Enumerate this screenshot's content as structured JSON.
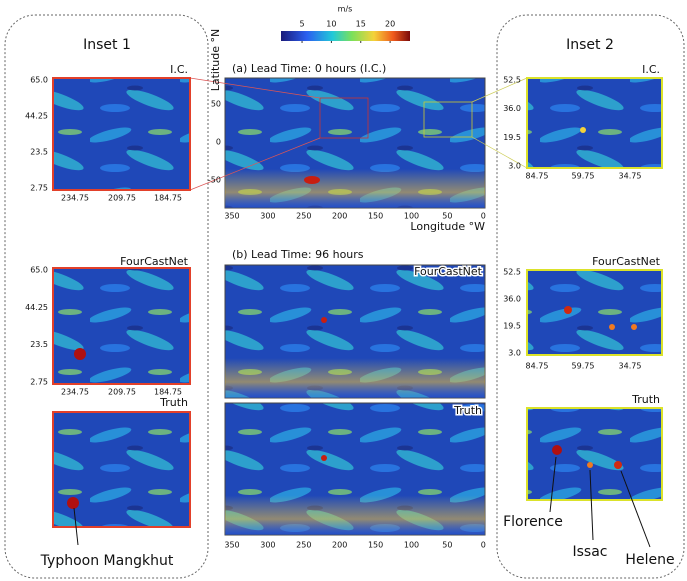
{
  "colorbar": {
    "unit": "m/s",
    "ticks": [
      5,
      10,
      15,
      20
    ]
  },
  "main": {
    "y_axis_label": "Latitude °N",
    "x_axis_label": "Longitude °W",
    "panel_a_title": "(a) Lead Time: 0 hours (I.C.)",
    "panel_b_title": "(b) Lead Time: 96 hours",
    "lat_ticks": [
      "50",
      "0",
      "-50"
    ],
    "lon_ticks": [
      "350",
      "300",
      "250",
      "200",
      "150",
      "100",
      "50",
      "0"
    ],
    "panel_labels": [
      "FourCastNet",
      "Truth"
    ]
  },
  "insets": [
    {
      "title": "Inset 1",
      "panel_labels": [
        "I.C.",
        "FourCastNet",
        "Truth"
      ],
      "y_ticks": [
        "65.0",
        "44.25",
        "23.5",
        "2.75"
      ],
      "x_ticks": [
        "234.75",
        "209.75",
        "184.75"
      ]
    },
    {
      "title": "Inset 2",
      "panel_labels": [
        "I.C.",
        "FourCastNet",
        "Truth"
      ],
      "y_ticks": [
        "52.5",
        "36.0",
        "19.5",
        "3.0"
      ],
      "x_ticks": [
        "84.75",
        "59.75",
        "34.75"
      ]
    }
  ],
  "annotations": {
    "typhoon": "Typhoon Mangkhut",
    "florence": "Florence",
    "issac": "Issac",
    "helene": "Helene"
  }
}
